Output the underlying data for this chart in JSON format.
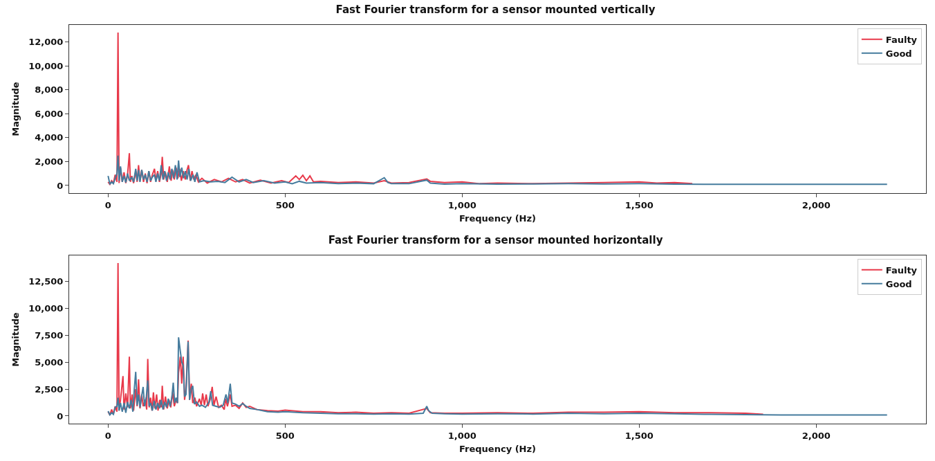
{
  "chart_data": [
    {
      "type": "line",
      "title": "Fast Fourier transform for a sensor mounted vertically",
      "xlabel": "Frequency (Hz)",
      "ylabel": "Magnitude",
      "xlim": [
        -110,
        2310
      ],
      "xticks": [
        0,
        {
          "value": 500,
          "label": "500"
        },
        {
          "value": 1000,
          "label": "1,000"
        },
        {
          "value": 1500,
          "label": "1,500"
        },
        {
          "value": 2000,
          "label": "2,000"
        }
      ],
      "ylim": [
        -640,
        13440
      ],
      "yticks": [
        0,
        {
          "value": 2000,
          "label": "2,000"
        },
        {
          "value": 4000,
          "label": "4,000"
        },
        {
          "value": 6000,
          "label": "6,000"
        },
        {
          "value": 8000,
          "label": "8,000"
        },
        {
          "value": 10000,
          "label": "10,000"
        },
        {
          "value": 12000,
          "label": "12,000"
        }
      ],
      "grid": false,
      "legend": "top right",
      "series": [
        {
          "name": "Faulty",
          "color": "#e8394a",
          "x": [
            0,
            5,
            10,
            15,
            20,
            25,
            28,
            31,
            35,
            40,
            45,
            50,
            55,
            60,
            63,
            67,
            72,
            78,
            82,
            86,
            90,
            95,
            100,
            105,
            110,
            115,
            120,
            125,
            131,
            135,
            140,
            145,
            150,
            153,
            157,
            162,
            167,
            173,
            178,
            182,
            187,
            192,
            197,
            202,
            207,
            212,
            218,
            223,
            227,
            232,
            237,
            242,
            248,
            255,
            265,
            280,
            300,
            320,
            340,
            360,
            380,
            400,
            430,
            460,
            490,
            510,
            530,
            540,
            550,
            560,
            570,
            580,
            600,
            650,
            700,
            750,
            780,
            800,
            850,
            900,
            910,
            950,
            1000,
            1050,
            1100,
            1200,
            1300,
            1400,
            1500,
            1550,
            1600,
            1650
          ],
          "values": [
            300,
            100,
            400,
            200,
            900,
            300,
            12800,
            200,
            1500,
            300,
            1100,
            200,
            900,
            2700,
            300,
            800,
            200,
            1200,
            300,
            1700,
            400,
            1300,
            300,
            1000,
            200,
            1200,
            300,
            900,
            1400,
            400,
            1200,
            300,
            1000,
            2400,
            500,
            1100,
            300,
            1600,
            400,
            1300,
            500,
            1500,
            600,
            1400,
            400,
            1200,
            500,
            1300,
            1700,
            400,
            1200,
            500,
            900,
            300,
            600,
            200,
            500,
            300,
            600,
            300,
            500,
            200,
            450,
            200,
            400,
            250,
            800,
            500,
            850,
            400,
            800,
            300,
            350,
            250,
            300,
            200,
            400,
            200,
            250,
            550,
            350,
            250,
            300,
            150,
            200,
            150,
            200,
            250,
            300,
            200,
            250,
            150
          ]
        },
        {
          "name": "Good",
          "color": "#457b9d",
          "x": [
            0,
            5,
            10,
            15,
            20,
            25,
            28,
            31,
            35,
            40,
            45,
            50,
            55,
            60,
            67,
            72,
            78,
            82,
            86,
            90,
            95,
            100,
            105,
            110,
            115,
            120,
            125,
            131,
            135,
            140,
            145,
            150,
            155,
            160,
            165,
            170,
            175,
            180,
            185,
            190,
            195,
            199,
            203,
            208,
            213,
            218,
            223,
            228,
            233,
            240,
            245,
            251,
            258,
            270,
            290,
            310,
            330,
            350,
            370,
            390,
            410,
            440,
            470,
            500,
            520,
            540,
            560,
            600,
            650,
            700,
            750,
            780,
            790,
            800,
            850,
            900,
            910,
            950,
            1000,
            1100,
            1200,
            1300,
            1400,
            1500,
            1600,
            1700,
            1800,
            1900,
            2000,
            2100,
            2200
          ],
          "values": [
            800,
            100,
            300,
            150,
            600,
            1000,
            2500,
            400,
            1600,
            300,
            800,
            250,
            1000,
            400,
            700,
            300,
            1400,
            400,
            1300,
            300,
            1300,
            500,
            900,
            300,
            1200,
            400,
            700,
            900,
            300,
            1000,
            400,
            1700,
            500,
            1200,
            400,
            1100,
            500,
            1400,
            600,
            1700,
            500,
            2100,
            700,
            1500,
            600,
            1200,
            500,
            1400,
            400,
            900,
            300,
            1100,
            300,
            400,
            300,
            350,
            250,
            700,
            300,
            500,
            250,
            400,
            200,
            300,
            150,
            350,
            200,
            250,
            150,
            200,
            150,
            650,
            250,
            150,
            150,
            450,
            200,
            120,
            150,
            120,
            130,
            150,
            130,
            150,
            120,
            100,
            100,
            100,
            100,
            100,
            100
          ]
        }
      ]
    },
    {
      "type": "line",
      "title": "Fast Fourier transform for a sensor mounted horizontally",
      "xlabel": "Frequency (Hz)",
      "ylabel": "Magnitude",
      "xlim": [
        -110,
        2310
      ],
      "xticks": [
        0,
        {
          "value": 500,
          "label": "500"
        },
        {
          "value": 1000,
          "label": "1,000"
        },
        {
          "value": 1500,
          "label": "1,500"
        },
        {
          "value": 2000,
          "label": "2,000"
        }
      ],
      "ylim": [
        -710,
        14910
      ],
      "yticks": [
        0,
        {
          "value": 2500,
          "label": "2,500"
        },
        {
          "value": 5000,
          "label": "5,000"
        },
        {
          "value": 7500,
          "label": "7,500"
        },
        {
          "value": 10000,
          "label": "10,000"
        },
        {
          "value": 12500,
          "label": "12,500"
        }
      ],
      "grid": false,
      "legend": "top right",
      "series": [
        {
          "name": "Faulty",
          "color": "#e8394a",
          "x": [
            0,
            5,
            10,
            15,
            20,
            25,
            28,
            31,
            35,
            42,
            45,
            50,
            55,
            60,
            63,
            68,
            72,
            78,
            82,
            86,
            90,
            95,
            99,
            105,
            109,
            112,
            116,
            120,
            124,
            128,
            132,
            137,
            141,
            146,
            150,
            153,
            157,
            162,
            167,
            172,
            177,
            182,
            187,
            192,
            196,
            199,
            204,
            208,
            212,
            216,
            220,
            226,
            230,
            235,
            239,
            245,
            250,
            258,
            263,
            267,
            272,
            277,
            282,
            288,
            294,
            299,
            305,
            312,
            320,
            328,
            332,
            337,
            345,
            350,
            360,
            370,
            380,
            390,
            400,
            420,
            450,
            480,
            500,
            550,
            600,
            650,
            700,
            750,
            800,
            850,
            900,
            910,
            950,
            1000,
            1100,
            1200,
            1300,
            1400,
            1500,
            1600,
            1700,
            1800,
            1850
          ],
          "values": [
            400,
            100,
            600,
            200,
            900,
            400,
            14200,
            500,
            1500,
            3700,
            600,
            2100,
            800,
            5500,
            700,
            2000,
            500,
            2500,
            900,
            3400,
            700,
            2000,
            900,
            1500,
            600,
            5300,
            800,
            1700,
            500,
            2200,
            700,
            2000,
            500,
            1500,
            800,
            2800,
            600,
            1800,
            700,
            1500,
            800,
            2200,
            900,
            1500,
            1200,
            4000,
            5500,
            3000,
            5500,
            1500,
            2500,
            7000,
            1500,
            3000,
            1200,
            1700,
            900,
            1600,
            1000,
            2100,
            1000,
            2000,
            900,
            1500,
            2700,
            1000,
            1800,
            800,
            1000,
            600,
            1600,
            900,
            2000,
            900,
            1000,
            700,
            1200,
            800,
            900,
            600,
            500,
            450,
            550,
            400,
            400,
            300,
            350,
            250,
            300,
            250,
            700,
            300,
            250,
            250,
            300,
            250,
            350,
            350,
            400,
            300,
            300,
            250,
            150
          ]
        },
        {
          "name": "Good",
          "color": "#457b9d",
          "x": [
            0,
            5,
            10,
            15,
            20,
            25,
            28,
            31,
            35,
            40,
            45,
            50,
            55,
            60,
            65,
            70,
            74,
            78,
            82,
            86,
            90,
            95,
            99,
            103,
            108,
            112,
            116,
            120,
            125,
            130,
            135,
            140,
            145,
            150,
            155,
            160,
            165,
            170,
            175,
            180,
            184,
            188,
            192,
            196,
            199,
            204,
            208,
            212,
            216,
            220,
            226,
            230,
            235,
            239,
            244,
            250,
            258,
            265,
            275,
            285,
            290,
            295,
            305,
            315,
            325,
            333,
            338,
            345,
            350,
            360,
            370,
            380,
            390,
            400,
            420,
            450,
            480,
            500,
            550,
            600,
            650,
            700,
            750,
            800,
            850,
            890,
            900,
            905,
            915,
            950,
            1000,
            1100,
            1200,
            1300,
            1400,
            1500,
            1600,
            1700,
            1800,
            1900,
            2000,
            2100,
            2200
          ],
          "values": [
            450,
            100,
            300,
            150,
            800,
            900,
            1700,
            500,
            1200,
            400,
            1200,
            300,
            1300,
            700,
            1500,
            400,
            2500,
            4100,
            1000,
            2000,
            800,
            1900,
            2700,
            900,
            1800,
            3300,
            900,
            1200,
            500,
            1400,
            600,
            1200,
            700,
            1500,
            600,
            1300,
            800,
            1600,
            900,
            1700,
            3100,
            1200,
            1700,
            1200,
            7300,
            6000,
            5000,
            4700,
            1800,
            2000,
            6900,
            1500,
            2500,
            2800,
            1100,
            1300,
            900,
            1000,
            800,
            1300,
            2300,
            1000,
            900,
            800,
            1000,
            2000,
            1200,
            3000,
            1200,
            1100,
            900,
            1150,
            900,
            700,
            600,
            400,
            350,
            400,
            300,
            250,
            200,
            200,
            180,
            200,
            180,
            250,
            900,
            500,
            250,
            200,
            180,
            200,
            180,
            250,
            200,
            250,
            200,
            150,
            130,
            100,
            100,
            100,
            100
          ]
        }
      ]
    }
  ]
}
